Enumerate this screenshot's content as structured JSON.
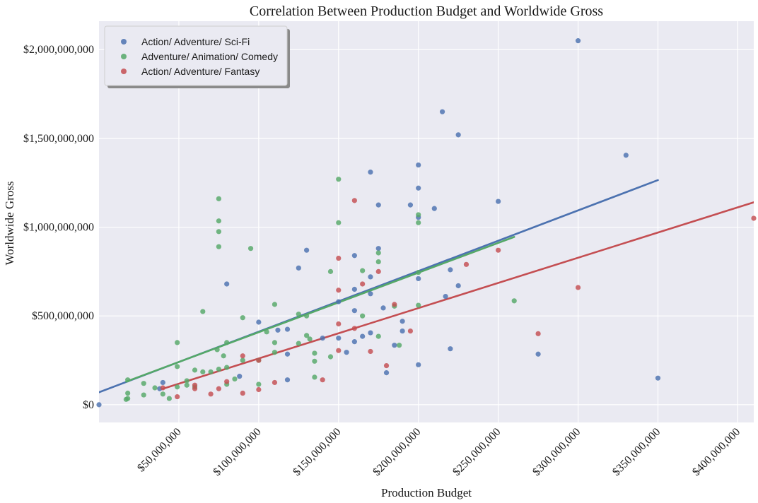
{
  "chart_data": {
    "type": "scatter",
    "title": "Correlation Between Production Budget and Worldwide Gross",
    "xlabel": "Production Budget",
    "ylabel": "Worldwide Gross",
    "xlim": [
      0,
      410000000
    ],
    "ylim": [
      -100000000,
      2160000000
    ],
    "x_ticks": [
      {
        "value": 50000000,
        "label": "$50,000,000"
      },
      {
        "value": 100000000,
        "label": "$100,000,000"
      },
      {
        "value": 150000000,
        "label": "$150,000,000"
      },
      {
        "value": 200000000,
        "label": "$200,000,000"
      },
      {
        "value": 250000000,
        "label": "$250,000,000"
      },
      {
        "value": 300000000,
        "label": "$300,000,000"
      },
      {
        "value": 350000000,
        "label": "$350,000,000"
      },
      {
        "value": 400000000,
        "label": "$400,000,000"
      }
    ],
    "y_ticks": [
      {
        "value": 0,
        "label": "$0"
      },
      {
        "value": 500000000,
        "label": "$500,000,000"
      },
      {
        "value": 1000000000,
        "label": "$1,000,000,000"
      },
      {
        "value": 1500000000,
        "label": "$1,500,000,000"
      },
      {
        "value": 2000000000,
        "label": "$2,000,000,000"
      }
    ],
    "grid": true,
    "legend_position": "top-left",
    "series": [
      {
        "name": "Action/ Adventure/ Sci-Fi",
        "color": "#4c72b0",
        "points": [
          [
            0,
            0
          ],
          [
            38000000,
            90000000
          ],
          [
            40000000,
            125000000
          ],
          [
            80000000,
            680000000
          ],
          [
            88000000,
            160000000
          ],
          [
            100000000,
            465000000
          ],
          [
            112000000,
            420000000
          ],
          [
            118000000,
            425000000
          ],
          [
            118000000,
            285000000
          ],
          [
            118000000,
            140000000
          ],
          [
            125000000,
            770000000
          ],
          [
            130000000,
            870000000
          ],
          [
            140000000,
            375000000
          ],
          [
            150000000,
            580000000
          ],
          [
            150000000,
            375000000
          ],
          [
            155000000,
            295000000
          ],
          [
            160000000,
            840000000
          ],
          [
            160000000,
            650000000
          ],
          [
            160000000,
            530000000
          ],
          [
            160000000,
            355000000
          ],
          [
            165000000,
            385000000
          ],
          [
            170000000,
            1310000000
          ],
          [
            170000000,
            720000000
          ],
          [
            170000000,
            625000000
          ],
          [
            170000000,
            405000000
          ],
          [
            175000000,
            1125000000
          ],
          [
            175000000,
            880000000
          ],
          [
            178000000,
            545000000
          ],
          [
            180000000,
            180000000
          ],
          [
            185000000,
            335000000
          ],
          [
            190000000,
            470000000
          ],
          [
            190000000,
            415000000
          ],
          [
            195000000,
            1125000000
          ],
          [
            200000000,
            1350000000
          ],
          [
            200000000,
            1220000000
          ],
          [
            200000000,
            1055000000
          ],
          [
            200000000,
            710000000
          ],
          [
            200000000,
            225000000
          ],
          [
            210000000,
            1105000000
          ],
          [
            215000000,
            1650000000
          ],
          [
            217000000,
            610000000
          ],
          [
            220000000,
            760000000
          ],
          [
            220000000,
            315000000
          ],
          [
            225000000,
            1520000000
          ],
          [
            225000000,
            670000000
          ],
          [
            250000000,
            1145000000
          ],
          [
            275000000,
            285000000
          ],
          [
            300000000,
            2050000000
          ],
          [
            330000000,
            1405000000
          ],
          [
            350000000,
            150000000
          ]
        ],
        "fit": [
          [
            0,
            70000000
          ],
          [
            350000000,
            1265000000
          ]
        ]
      },
      {
        "name": "Adventure/ Animation/ Comedy",
        "color": "#55a868",
        "points": [
          [
            17000000,
            30000000
          ],
          [
            18000000,
            140000000
          ],
          [
            18000000,
            65000000
          ],
          [
            18000000,
            35000000
          ],
          [
            28000000,
            55000000
          ],
          [
            28000000,
            120000000
          ],
          [
            35000000,
            95000000
          ],
          [
            40000000,
            60000000
          ],
          [
            44000000,
            35000000
          ],
          [
            49000000,
            350000000
          ],
          [
            49000000,
            215000000
          ],
          [
            49000000,
            100000000
          ],
          [
            55000000,
            135000000
          ],
          [
            55000000,
            110000000
          ],
          [
            60000000,
            195000000
          ],
          [
            60000000,
            100000000
          ],
          [
            65000000,
            185000000
          ],
          [
            65000000,
            525000000
          ],
          [
            70000000,
            185000000
          ],
          [
            74000000,
            310000000
          ],
          [
            75000000,
            1160000000
          ],
          [
            75000000,
            1035000000
          ],
          [
            75000000,
            975000000
          ],
          [
            75000000,
            890000000
          ],
          [
            75000000,
            200000000
          ],
          [
            78000000,
            275000000
          ],
          [
            80000000,
            350000000
          ],
          [
            80000000,
            210000000
          ],
          [
            80000000,
            115000000
          ],
          [
            85000000,
            145000000
          ],
          [
            90000000,
            490000000
          ],
          [
            90000000,
            250000000
          ],
          [
            95000000,
            880000000
          ],
          [
            100000000,
            250000000
          ],
          [
            100000000,
            115000000
          ],
          [
            105000000,
            410000000
          ],
          [
            110000000,
            565000000
          ],
          [
            110000000,
            350000000
          ],
          [
            110000000,
            295000000
          ],
          [
            125000000,
            510000000
          ],
          [
            125000000,
            345000000
          ],
          [
            130000000,
            500000000
          ],
          [
            130000000,
            390000000
          ],
          [
            132000000,
            370000000
          ],
          [
            135000000,
            290000000
          ],
          [
            135000000,
            245000000
          ],
          [
            135000000,
            155000000
          ],
          [
            145000000,
            750000000
          ],
          [
            145000000,
            270000000
          ],
          [
            150000000,
            1270000000
          ],
          [
            150000000,
            1025000000
          ],
          [
            165000000,
            755000000
          ],
          [
            165000000,
            500000000
          ],
          [
            175000000,
            855000000
          ],
          [
            175000000,
            805000000
          ],
          [
            175000000,
            385000000
          ],
          [
            185000000,
            555000000
          ],
          [
            188000000,
            335000000
          ],
          [
            200000000,
            1070000000
          ],
          [
            200000000,
            1025000000
          ],
          [
            200000000,
            745000000
          ],
          [
            200000000,
            560000000
          ],
          [
            260000000,
            585000000
          ]
        ],
        "fit": [
          [
            17000000,
            130000000
          ],
          [
            260000000,
            945000000
          ]
        ]
      },
      {
        "name": "Action/ Adventure/ Fantasy",
        "color": "#c44e52",
        "points": [
          [
            40000000,
            95000000
          ],
          [
            49000000,
            45000000
          ],
          [
            60000000,
            110000000
          ],
          [
            60000000,
            90000000
          ],
          [
            70000000,
            60000000
          ],
          [
            75000000,
            90000000
          ],
          [
            80000000,
            130000000
          ],
          [
            90000000,
            275000000
          ],
          [
            90000000,
            65000000
          ],
          [
            100000000,
            250000000
          ],
          [
            100000000,
            85000000
          ],
          [
            110000000,
            125000000
          ],
          [
            140000000,
            140000000
          ],
          [
            150000000,
            825000000
          ],
          [
            150000000,
            645000000
          ],
          [
            150000000,
            455000000
          ],
          [
            150000000,
            305000000
          ],
          [
            160000000,
            1150000000
          ],
          [
            160000000,
            430000000
          ],
          [
            165000000,
            680000000
          ],
          [
            170000000,
            300000000
          ],
          [
            175000000,
            750000000
          ],
          [
            180000000,
            220000000
          ],
          [
            185000000,
            565000000
          ],
          [
            195000000,
            415000000
          ],
          [
            230000000,
            790000000
          ],
          [
            250000000,
            870000000
          ],
          [
            275000000,
            400000000
          ],
          [
            300000000,
            660000000
          ],
          [
            410000000,
            1050000000
          ]
        ],
        "fit": [
          [
            40000000,
            90000000
          ],
          [
            410000000,
            1140000000
          ]
        ]
      }
    ]
  }
}
